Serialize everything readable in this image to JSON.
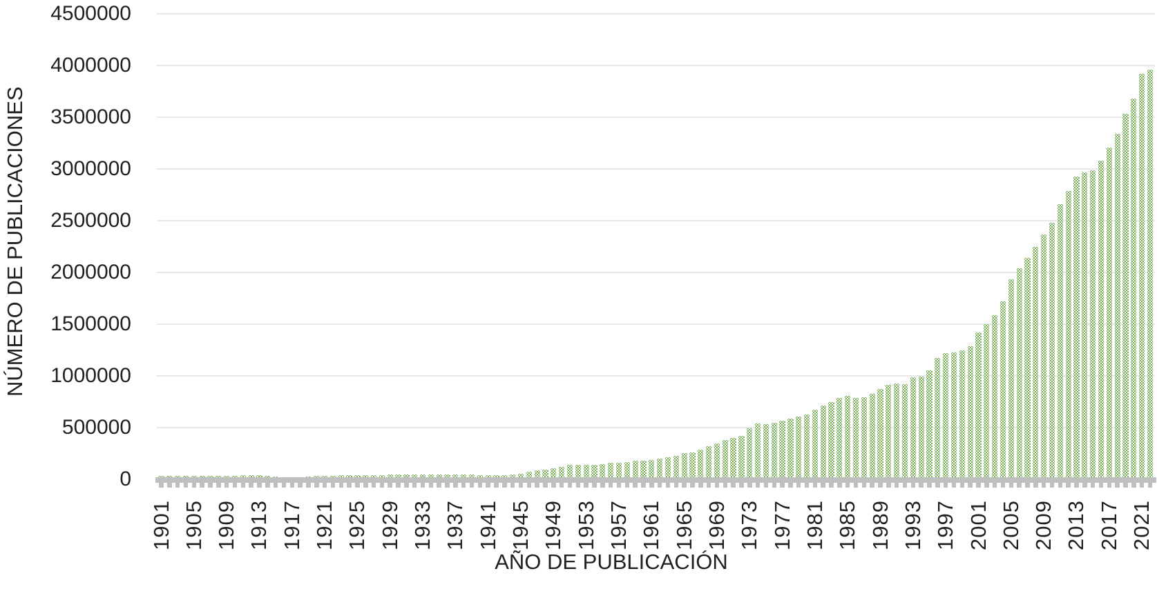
{
  "chart_data": {
    "type": "bar",
    "title": "",
    "xlabel": "AÑO DE PUBLICACIÓN",
    "ylabel": "NÚMERO DE PUBLICACIONES",
    "ylim": [
      0,
      4500000
    ],
    "ytick_step": 500000,
    "ytick_labels": [
      "0",
      "500000",
      "1000000",
      "1500000",
      "2000000",
      "2500000",
      "3000000",
      "3500000",
      "4000000",
      "4500000"
    ],
    "x_label_every": 4,
    "grid": true,
    "legend": "none",
    "colors": {
      "bar": "#6faa4d",
      "bar_pattern_dot": "#ffffff",
      "axis_band": "#bfbfbf",
      "gridline": "#e8e8e8",
      "text": "#1f1f1f",
      "background": "#ffffff"
    },
    "years": [
      1901,
      1902,
      1903,
      1904,
      1905,
      1906,
      1907,
      1908,
      1909,
      1910,
      1911,
      1912,
      1913,
      1914,
      1915,
      1916,
      1917,
      1918,
      1919,
      1920,
      1921,
      1922,
      1923,
      1924,
      1925,
      1926,
      1927,
      1928,
      1929,
      1930,
      1931,
      1932,
      1933,
      1934,
      1935,
      1936,
      1937,
      1938,
      1939,
      1940,
      1941,
      1942,
      1943,
      1944,
      1945,
      1946,
      1947,
      1948,
      1949,
      1950,
      1951,
      1952,
      1953,
      1954,
      1955,
      1956,
      1957,
      1958,
      1959,
      1960,
      1961,
      1962,
      1963,
      1964,
      1965,
      1966,
      1967,
      1968,
      1969,
      1970,
      1971,
      1972,
      1973,
      1974,
      1975,
      1976,
      1977,
      1978,
      1979,
      1980,
      1981,
      1982,
      1983,
      1984,
      1985,
      1986,
      1987,
      1988,
      1989,
      1990,
      1991,
      1992,
      1993,
      1994,
      1995,
      1996,
      1997,
      1998,
      1999,
      2000,
      2001,
      2002,
      2003,
      2004,
      2005,
      2006,
      2007,
      2008,
      2009,
      2010,
      2011,
      2012,
      2013,
      2014,
      2015,
      2016,
      2017,
      2018,
      2019,
      2020,
      2021,
      2022
    ],
    "values": [
      30000,
      31000,
      31000,
      32000,
      33000,
      33000,
      34000,
      35000,
      35000,
      36000,
      37000,
      38000,
      38000,
      30000,
      24000,
      21000,
      20000,
      22000,
      28000,
      31000,
      34000,
      36000,
      37000,
      38000,
      39000,
      41000,
      42000,
      43000,
      45000,
      46000,
      46000,
      44000,
      44000,
      45000,
      47000,
      48000,
      50000,
      48000,
      45000,
      41000,
      38000,
      39000,
      42000,
      48000,
      55000,
      72000,
      85000,
      93000,
      105000,
      123000,
      140000,
      138000,
      143000,
      140000,
      150000,
      163000,
      158000,
      170000,
      177000,
      183000,
      190000,
      198000,
      212000,
      225000,
      250000,
      263000,
      290000,
      320000,
      350000,
      378000,
      400000,
      423000,
      495000,
      540000,
      535000,
      545000,
      565000,
      585000,
      605000,
      630000,
      675000,
      715000,
      750000,
      790000,
      805000,
      790000,
      795000,
      830000,
      870000,
      915000,
      925000,
      920000,
      985000,
      995000,
      1050000,
      1175000,
      1220000,
      1230000,
      1245000,
      1290000,
      1420000,
      1500000,
      1590000,
      1720000,
      1930000,
      2040000,
      2140000,
      2250000,
      2370000,
      2480000,
      2660000,
      2790000,
      2930000,
      2970000,
      2990000,
      3080000,
      3210000,
      3340000,
      3530000,
      3680000,
      3920000,
      3960000
    ]
  }
}
